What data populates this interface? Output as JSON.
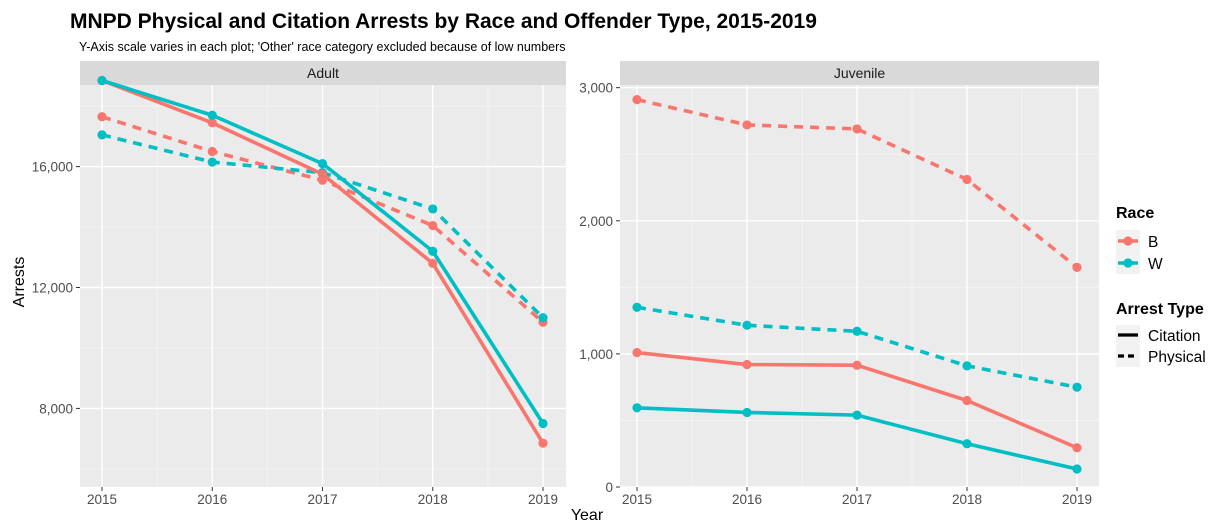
{
  "chart_data": {
    "type": "line",
    "title": "MNPD Physical and Citation Arrests by Race and Offender Type, 2015-2019",
    "subtitle": "Y-Axis scale varies in each plot; 'Other' race category excluded because of low numbers",
    "xlabel": "Year",
    "ylabel": "Arrests",
    "x": [
      "2015",
      "2016",
      "2017",
      "2018",
      "2019"
    ],
    "colors": {
      "B": "#F8766D",
      "W": "#00BFC4"
    },
    "legend": {
      "placement": "right",
      "race_title": "Race",
      "race_items": [
        "B",
        "W"
      ],
      "type_title": "Arrest Type",
      "type_items": [
        "Citation",
        "Physical"
      ]
    },
    "panels": [
      {
        "name": "Adult",
        "ylim": [
          5400,
          18700
        ],
        "yticks": [
          8000,
          12000,
          16000
        ],
        "ytick_labels": [
          "8,000",
          "12,000",
          "16,000"
        ],
        "series": [
          {
            "race": "B",
            "type": "Citation",
            "values": [
              18850,
              17450,
              15750,
              12800,
              6850
            ]
          },
          {
            "race": "W",
            "type": "Citation",
            "values": [
              18850,
              17700,
              16100,
              13200,
              7500
            ]
          },
          {
            "race": "B",
            "type": "Physical",
            "values": [
              17650,
              16500,
              15550,
              14050,
              10850
            ]
          },
          {
            "race": "W",
            "type": "Physical",
            "values": [
              17050,
              16150,
              15800,
              14600,
              11000
            ]
          }
        ]
      },
      {
        "name": "Juvenile",
        "ylim": [
          0,
          3020
        ],
        "yticks": [
          0,
          1000,
          2000,
          3000
        ],
        "ytick_labels": [
          "0",
          "1,000",
          "2,000",
          "3,000"
        ],
        "series": [
          {
            "race": "B",
            "type": "Citation",
            "values": [
              1010,
              920,
              915,
              650,
              295
            ]
          },
          {
            "race": "W",
            "type": "Citation",
            "values": [
              595,
              560,
              540,
              325,
              135
            ]
          },
          {
            "race": "B",
            "type": "Physical",
            "values": [
              2910,
              2720,
              2690,
              2310,
              1650
            ]
          },
          {
            "race": "W",
            "type": "Physical",
            "values": [
              1350,
              1215,
              1170,
              910,
              750
            ]
          }
        ]
      }
    ]
  }
}
